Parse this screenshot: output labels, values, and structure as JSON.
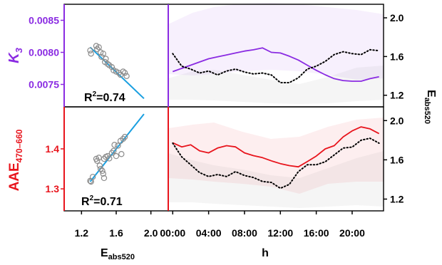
{
  "chart_data": [
    {
      "type": "scatter",
      "panel": "top-left",
      "ylabel": "K",
      "ylabel_sub": "3",
      "ylabel_color": "#8a2be2",
      "yticks": [
        "0.0075",
        "0.0080",
        "0.0085"
      ],
      "ylim": [
        0.00715,
        0.00875
      ],
      "xlim": [
        1.0,
        2.2
      ],
      "annotation": {
        "r2_prefix": "R",
        "r2_exp": "2",
        "r2_value": "=0.74"
      },
      "points": [
        [
          1.3,
          0.00803
        ],
        [
          1.31,
          0.00798
        ],
        [
          1.37,
          0.0081
        ],
        [
          1.38,
          0.00805
        ],
        [
          1.4,
          0.00808
        ],
        [
          1.42,
          0.008
        ],
        [
          1.43,
          0.00793
        ],
        [
          1.45,
          0.00798
        ],
        [
          1.47,
          0.00785
        ],
        [
          1.48,
          0.0079
        ],
        [
          1.5,
          0.00782
        ],
        [
          1.52,
          0.0078
        ],
        [
          1.55,
          0.00777
        ],
        [
          1.57,
          0.00772
        ],
        [
          1.6,
          0.0077
        ],
        [
          1.63,
          0.00768
        ],
        [
          1.65,
          0.00765
        ],
        [
          1.68,
          0.0077
        ],
        [
          1.7,
          0.00768
        ],
        [
          1.72,
          0.00763
        ]
      ],
      "fit": [
        [
          1.3,
          0.00808
        ],
        [
          1.92,
          0.00728
        ]
      ],
      "fit_color": "#1a9fe0"
    },
    {
      "type": "scatter",
      "panel": "bottom-left",
      "ylabel": "AAE",
      "ylabel_sub": "470–660",
      "ylabel_color": "#e8141c",
      "yticks": [
        "1.3",
        "1.4"
      ],
      "ylim": [
        1.245,
        1.505
      ],
      "xlim": [
        1.0,
        2.2
      ],
      "xticks": [
        "1.2",
        "1.6",
        "2.0"
      ],
      "xlabel": "E",
      "xlabel_sub": "abs520",
      "annotation": {
        "r2_prefix": "R",
        "r2_exp": "2",
        "r2_value": "=0.71"
      },
      "points": [
        [
          1.3,
          1.32
        ],
        [
          1.31,
          1.318
        ],
        [
          1.33,
          1.33
        ],
        [
          1.37,
          1.375
        ],
        [
          1.38,
          1.37
        ],
        [
          1.4,
          1.378
        ],
        [
          1.41,
          1.358
        ],
        [
          1.42,
          1.35
        ],
        [
          1.44,
          1.345
        ],
        [
          1.45,
          1.338
        ],
        [
          1.46,
          1.375
        ],
        [
          1.48,
          1.38
        ],
        [
          1.5,
          1.382
        ],
        [
          1.52,
          1.376
        ],
        [
          1.55,
          1.39
        ],
        [
          1.57,
          1.395
        ],
        [
          1.58,
          1.41
        ],
        [
          1.6,
          1.382
        ],
        [
          1.62,
          1.408
        ],
        [
          1.65,
          1.42
        ],
        [
          1.68,
          1.425
        ],
        [
          1.7,
          1.43
        ],
        [
          1.66,
          1.387
        ],
        [
          1.46,
          1.327
        ]
      ],
      "fit": [
        [
          1.3,
          1.318
        ],
        [
          1.92,
          1.487
        ]
      ],
      "fit_color": "#1a9fe0"
    },
    {
      "type": "line",
      "panel": "top-right",
      "x": [
        0,
        1,
        2,
        3,
        4,
        5,
        6,
        7,
        8,
        9,
        10,
        11,
        12,
        13,
        14,
        15,
        16,
        17,
        18,
        19,
        20,
        21,
        22,
        23
      ],
      "ylim_left": [
        0.00715,
        0.00875
      ],
      "ylim_right": [
        1.08,
        2.14
      ],
      "yticks_right": [
        "1.2",
        "1.6",
        "2.0"
      ],
      "right_label": "E",
      "right_label_sub": "abs520",
      "series": [
        {
          "axis": "left",
          "color": "#8a2be2",
          "style": "solid",
          "values": [
            0.0077,
            0.00775,
            0.0078,
            0.00785,
            0.0079,
            0.00793,
            0.00796,
            0.00799,
            0.00802,
            0.00804,
            0.00807,
            0.008,
            0.00799,
            0.00794,
            0.00788,
            0.0078,
            0.00772,
            0.00765,
            0.00759,
            0.00756,
            0.00755,
            0.00755,
            0.00759,
            0.00762
          ]
        },
        {
          "axis": "right",
          "color": "#000000",
          "style": "dotted",
          "values": [
            1.63,
            1.5,
            1.47,
            1.43,
            1.45,
            1.41,
            1.45,
            1.47,
            1.44,
            1.42,
            1.43,
            1.41,
            1.33,
            1.33,
            1.38,
            1.47,
            1.5,
            1.55,
            1.62,
            1.65,
            1.63,
            1.62,
            1.67,
            1.66
          ]
        }
      ]
    },
    {
      "type": "line",
      "panel": "bottom-right",
      "x": [
        0,
        1,
        2,
        3,
        4,
        5,
        6,
        7,
        8,
        9,
        10,
        11,
        12,
        13,
        14,
        15,
        16,
        17,
        18,
        19,
        20,
        21,
        22,
        23
      ],
      "ylim_left": [
        1.245,
        1.505
      ],
      "ylim_right": [
        1.08,
        2.14
      ],
      "yticks_right": [
        "1.2",
        "1.6",
        "2.0"
      ],
      "xticks": [
        "00:00",
        "04:00",
        "08:00",
        "12:00",
        "16:00",
        "20:00"
      ],
      "xtick_hours": [
        0,
        4,
        8,
        12,
        16,
        20
      ],
      "xlabel": "h",
      "series": [
        {
          "axis": "left",
          "color": "#e8141c",
          "style": "solid",
          "values": [
            1.415,
            1.405,
            1.41,
            1.395,
            1.39,
            1.402,
            1.408,
            1.405,
            1.39,
            1.383,
            1.378,
            1.37,
            1.363,
            1.358,
            1.355,
            1.368,
            1.382,
            1.4,
            1.408,
            1.43,
            1.445,
            1.455,
            1.45,
            1.438
          ]
        },
        {
          "axis": "right",
          "color": "#000000",
          "style": "dotted",
          "values": [
            1.77,
            1.63,
            1.55,
            1.47,
            1.43,
            1.45,
            1.43,
            1.48,
            1.44,
            1.42,
            1.38,
            1.37,
            1.31,
            1.35,
            1.48,
            1.55,
            1.55,
            1.58,
            1.65,
            1.72,
            1.73,
            1.8,
            1.82,
            1.77
          ]
        }
      ]
    }
  ]
}
